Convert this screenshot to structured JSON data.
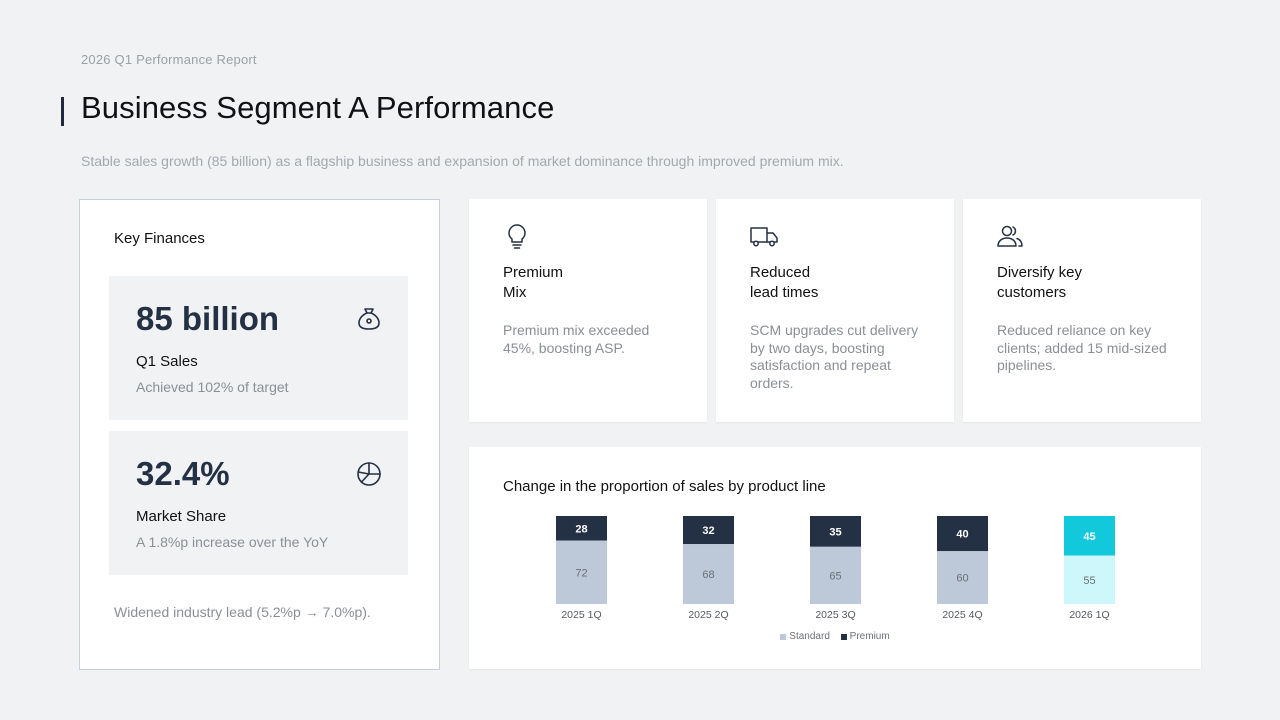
{
  "header": {
    "eyebrow": "2026 Q1 Performance Report",
    "title": "Business Segment A Performance",
    "subtitle": "Stable sales growth (85 billion) as a flagship business and expansion of market dominance through improved premium mix."
  },
  "finances": {
    "title": "Key Finances",
    "metrics": [
      {
        "value": "85 billion",
        "label": "Q1 Sales",
        "desc": "Achieved 102% of target",
        "icon": "money-bag-icon"
      },
      {
        "value": "32.4%",
        "label": "Market Share",
        "desc": "A 1.8%p increase over the YoY",
        "icon": "pie-chart-icon"
      }
    ],
    "note": "Widened industry lead (5.2%p → 7.0%p)."
  },
  "features": [
    {
      "icon": "lightbulb-icon",
      "title_line1": "Premium",
      "title_line2": "Mix",
      "desc": "Premium mix exceeded 45%, boosting ASP."
    },
    {
      "icon": "truck-icon",
      "title_line1": "Reduced",
      "title_line2": "lead times",
      "desc": "SCM upgrades cut delivery by two days, boosting satisfaction and repeat orders."
    },
    {
      "icon": "users-icon",
      "title_line1": "Diversify key",
      "title_line2": "customers",
      "desc": "Reduced reliance on key clients; added 15 mid-sized pipelines."
    }
  ],
  "chart_data": {
    "type": "bar",
    "stacked": true,
    "title": "Change in the proportion of sales by product line",
    "categories": [
      "2025 1Q",
      "2025 2Q",
      "2025 3Q",
      "2025 4Q",
      "2026 1Q"
    ],
    "series": [
      {
        "name": "Standard",
        "values": [
          72,
          68,
          65,
          60,
          55
        ]
      },
      {
        "name": "Premium",
        "values": [
          28,
          32,
          35,
          40,
          45
        ]
      }
    ],
    "ylim": [
      0,
      100
    ],
    "legend": "bottom",
    "colors": {
      "standard": "#bdc8d8",
      "premium": "#243044",
      "highlight_standard": "#cdf7fb",
      "highlight_premium": "#12c9dc"
    },
    "highlight_index": 4
  }
}
